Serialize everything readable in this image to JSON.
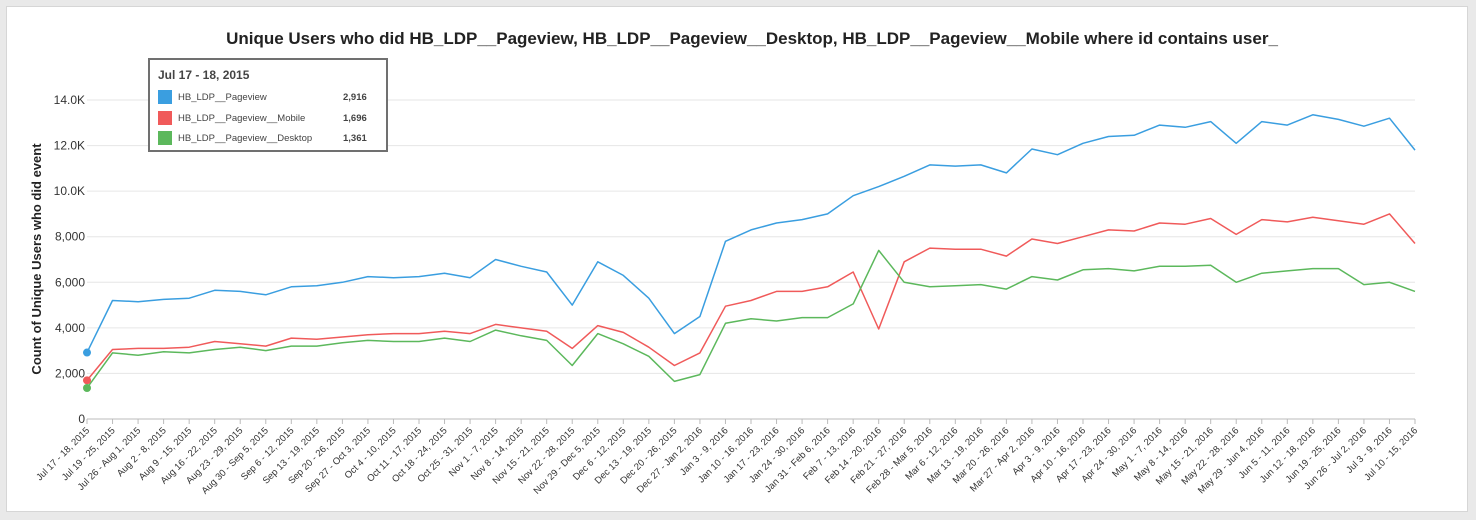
{
  "chart_data": {
    "type": "line",
    "title": "Unique Users who did HB_LDP__Pageview, HB_LDP__Pageview__Desktop, HB_LDP__Pageview__Mobile where id contains user_",
    "xlabel": "",
    "ylabel": "Count of Unique Users who did event",
    "ylim": [
      0,
      14000
    ],
    "y_ticks": [
      0,
      2000,
      4000,
      6000,
      8000,
      10000,
      12000,
      14000
    ],
    "y_tick_labels": [
      "0",
      "2,000",
      "4,000",
      "6,000",
      "8,000",
      "10.0K",
      "12.0K",
      "14.0K"
    ],
    "grid": true,
    "categories": [
      "Jul 17 - 18, 2015",
      "Jul 19 - 25, 2015",
      "Jul 26 - Aug 1, 2015",
      "Aug 2 - 8, 2015",
      "Aug 9 - 15, 2015",
      "Aug 16 - 22, 2015",
      "Aug 23 - 29, 2015",
      "Aug 30 - Sep 5, 2015",
      "Sep 6 - 12, 2015",
      "Sep 13 - 19, 2015",
      "Sep 20 - 26, 2015",
      "Sep 27 - Oct 3, 2015",
      "Oct 4 - 10, 2015",
      "Oct 11 - 17, 2015",
      "Oct 18 - 24, 2015",
      "Oct 25 - 31, 2015",
      "Nov 1 - 7, 2015",
      "Nov 8 - 14, 2015",
      "Nov 15 - 21, 2015",
      "Nov 22 - 28, 2015",
      "Nov 29 - Dec 5, 2015",
      "Dec 6 - 12, 2015",
      "Dec 13 - 19, 2015",
      "Dec 20 - 26, 2015",
      "Dec 27 - Jan 2, 2016",
      "Jan 3 - 9, 2016",
      "Jan 10 - 16, 2016",
      "Jan 17 - 23, 2016",
      "Jan 24 - 30, 2016",
      "Jan 31 - Feb 6, 2016",
      "Feb 7 - 13, 2016",
      "Feb 14 - 20, 2016",
      "Feb 21 - 27, 2016",
      "Feb 28 - Mar 5, 2016",
      "Mar 6 - 12, 2016",
      "Mar 13 - 19, 2016",
      "Mar 20 - 26, 2016",
      "Mar 27 - Apr 2, 2016",
      "Apr 3 - 9, 2016",
      "Apr 10 - 16, 2016",
      "Apr 17 - 23, 2016",
      "Apr 24 - 30, 2016",
      "May 1 - 7, 2016",
      "May 8 - 14, 2016",
      "May 15 - 21, 2016",
      "May 22 - 28, 2016",
      "May 29 - Jun 4, 2016",
      "Jun 5 - 11, 2016",
      "Jun 12 - 18, 2016",
      "Jun 19 - 25, 2016",
      "Jun 26 - Jul 2, 2016",
      "Jul 3 - 9, 2016",
      "Jul 10 - 15, 2016"
    ],
    "series": [
      {
        "name": "HB_LDP__Pageview",
        "color": "#3a9ee0",
        "values": [
          2916,
          5200,
          5150,
          5250,
          5300,
          5650,
          5600,
          5450,
          5800,
          5850,
          6000,
          6250,
          6200,
          6250,
          6400,
          6200,
          7000,
          6700,
          6450,
          5000,
          6900,
          6300,
          5300,
          3750,
          4500,
          7800,
          8300,
          8600,
          8750,
          9000,
          9800,
          10200,
          10650,
          11150,
          11100,
          11150,
          10800,
          11850,
          11600,
          12100,
          12400,
          12450,
          12900,
          12800,
          13050,
          12100,
          13050,
          12900,
          13350,
          13150,
          12850,
          13200,
          11800
        ]
      },
      {
        "name": "HB_LDP__Pageview__Mobile",
        "color": "#f05a5a",
        "values": [
          1696,
          3050,
          3100,
          3100,
          3150,
          3400,
          3300,
          3200,
          3550,
          3500,
          3600,
          3700,
          3750,
          3750,
          3850,
          3750,
          4150,
          4000,
          3850,
          3100,
          4100,
          3800,
          3150,
          2350,
          2900,
          4950,
          5200,
          5600,
          5600,
          5800,
          6450,
          3950,
          6900,
          7500,
          7450,
          7450,
          7150,
          7900,
          7700,
          8000,
          8300,
          8250,
          8600,
          8550,
          8800,
          8100,
          8750,
          8650,
          8850,
          8700,
          8550,
          9000,
          7700
        ]
      },
      {
        "name": "HB_LDP__Pageview__Desktop",
        "color": "#5cb85c",
        "values": [
          1361,
          2900,
          2800,
          2950,
          2900,
          3050,
          3150,
          3000,
          3200,
          3200,
          3350,
          3450,
          3400,
          3400,
          3550,
          3400,
          3900,
          3650,
          3450,
          2350,
          3750,
          3300,
          2750,
          1650,
          1950,
          4200,
          4400,
          4300,
          4450,
          4450,
          5050,
          7400,
          6000,
          5800,
          5850,
          5900,
          5700,
          6250,
          6100,
          6550,
          6600,
          6500,
          6700,
          6700,
          6750,
          6000,
          6400,
          6500,
          6600,
          6600,
          5900,
          6000,
          5600
        ]
      }
    ],
    "tooltip": {
      "title": "Jul 17 - 18, 2015",
      "rows": [
        {
          "name": "HB_LDP__Pageview",
          "value": "2,916",
          "color": "#3a9ee0"
        },
        {
          "name": "HB_LDP__Pageview__Mobile",
          "value": "1,696",
          "color": "#f05a5a"
        },
        {
          "name": "HB_LDP__Pageview__Desktop",
          "value": "1,361",
          "color": "#5cb85c"
        }
      ]
    }
  }
}
